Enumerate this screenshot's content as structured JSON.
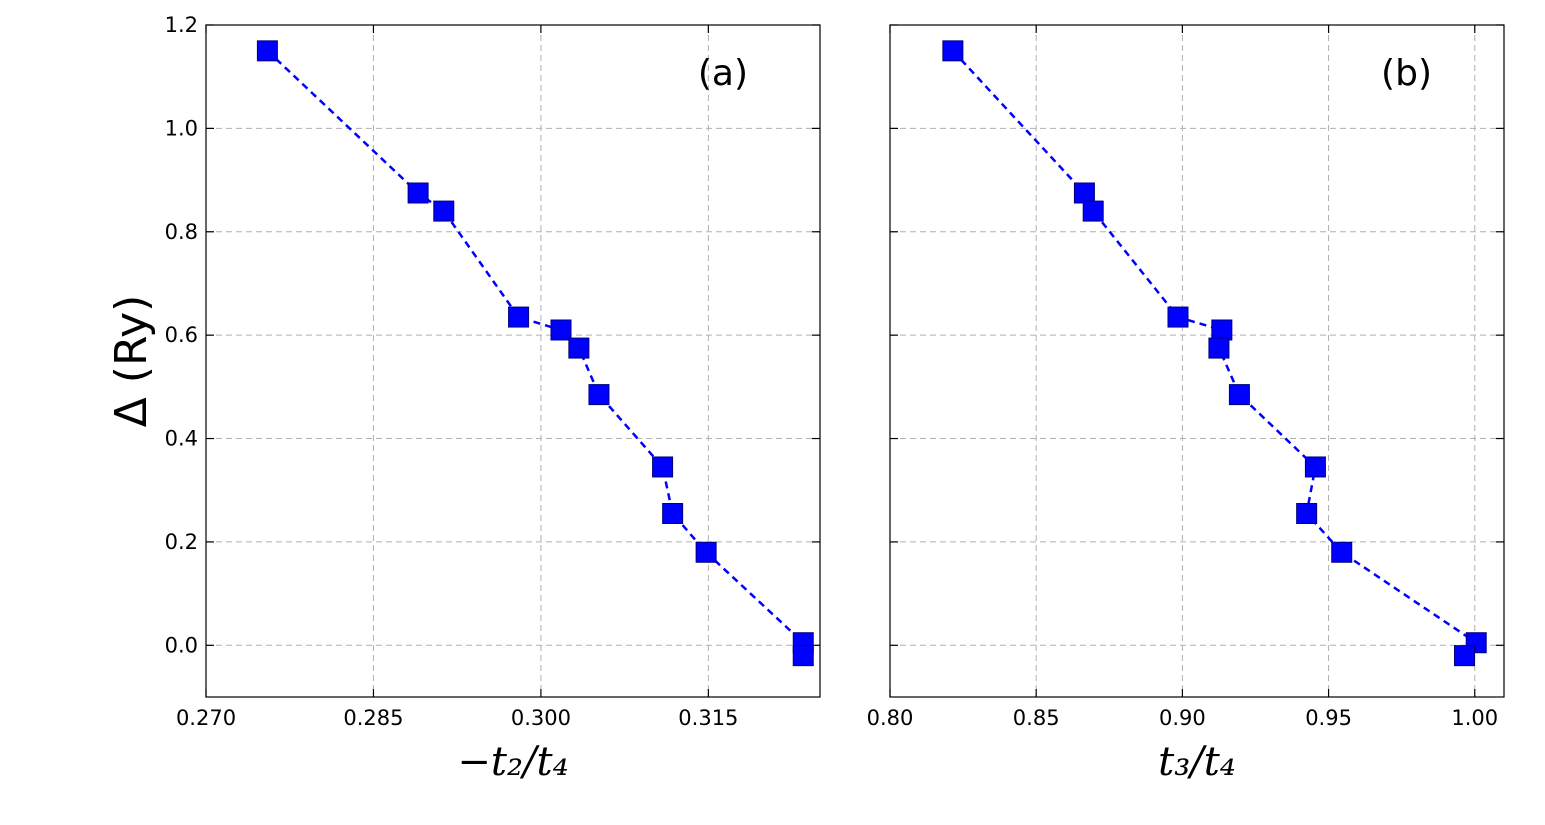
{
  "colors": {
    "series": "#0000ff",
    "marker_edge": "#000080",
    "grid": "#b0b0b0"
  },
  "ylabel": "Δ (Ry)",
  "chart_data": [
    {
      "type": "scatter",
      "panel_label": "(a)",
      "xlabel": "−t₂/t₄",
      "ylabel": "Δ (Ry)",
      "xlim": [
        0.27,
        0.325
      ],
      "ylim": [
        -0.1,
        1.2
      ],
      "xticks": [
        "0.270",
        "0.285",
        "0.300",
        "0.315"
      ],
      "yticks": [
        "0.0",
        "0.2",
        "0.4",
        "0.6",
        "0.8",
        "1.0",
        "1.2"
      ],
      "grid": true,
      "line_style": "dashed",
      "marker": "square",
      "x": [
        0.2755,
        0.289,
        0.2913,
        0.298,
        0.3018,
        0.3034,
        0.3052,
        0.3109,
        0.3118,
        0.3148,
        0.3235,
        0.3235
      ],
      "y": [
        1.15,
        0.875,
        0.84,
        0.635,
        0.61,
        0.575,
        0.485,
        0.345,
        0.255,
        0.18,
        0.005,
        -0.02
      ]
    },
    {
      "type": "scatter",
      "panel_label": "(b)",
      "xlabel": "t₃/t₄",
      "ylim": [
        -0.1,
        1.2
      ],
      "xlim": [
        0.8,
        1.01
      ],
      "xticks": [
        "0.80",
        "0.85",
        "0.90",
        "0.95",
        "1.00"
      ],
      "grid": true,
      "line_style": "dashed",
      "marker": "square",
      "x": [
        0.8215,
        0.8665,
        0.8695,
        0.8985,
        0.9135,
        0.9125,
        0.9195,
        0.9455,
        0.9425,
        0.9545,
        1.0005,
        0.9965
      ],
      "y": [
        1.15,
        0.875,
        0.84,
        0.635,
        0.61,
        0.575,
        0.485,
        0.345,
        0.255,
        0.18,
        0.005,
        -0.02
      ]
    }
  ]
}
